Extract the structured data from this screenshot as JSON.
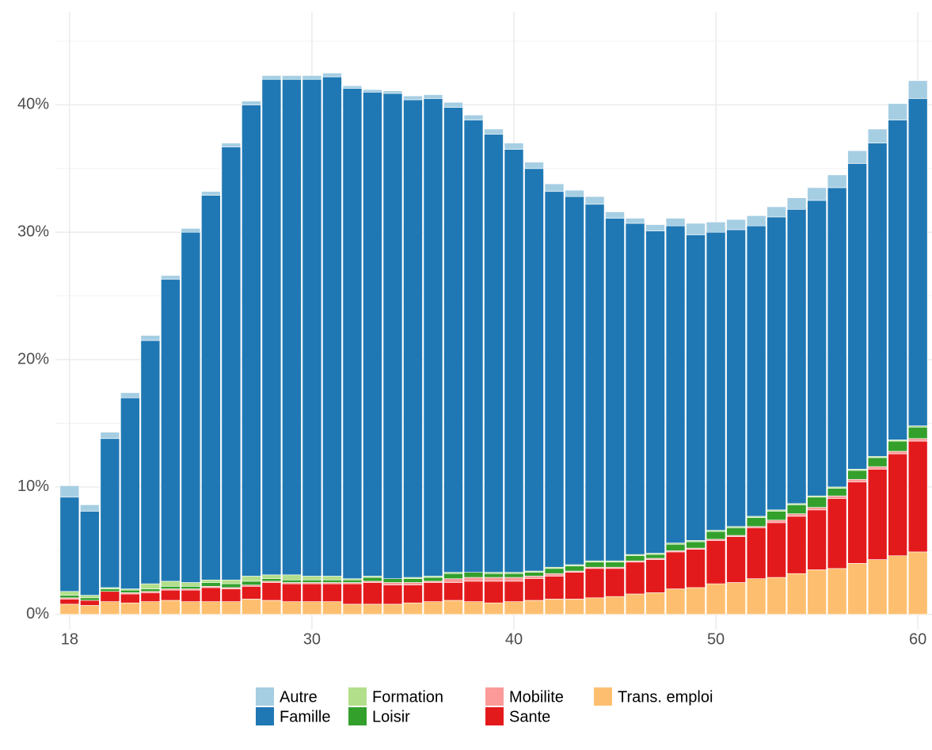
{
  "chart_data": {
    "type": "stacked_bar",
    "x": [
      18,
      19,
      20,
      21,
      22,
      23,
      24,
      25,
      26,
      27,
      28,
      29,
      30,
      31,
      32,
      33,
      34,
      35,
      36,
      37,
      38,
      39,
      40,
      41,
      42,
      43,
      44,
      45,
      46,
      47,
      48,
      49,
      50,
      51,
      52,
      53,
      54,
      55,
      56,
      57,
      58,
      59,
      60
    ],
    "series": [
      {
        "name": "Autre",
        "color": "#a6cee3",
        "values": [
          0.9,
          0.5,
          0.5,
          0.4,
          0.4,
          0.3,
          0.3,
          0.3,
          0.3,
          0.3,
          0.3,
          0.3,
          0.3,
          0.3,
          0.2,
          0.2,
          0.2,
          0.3,
          0.3,
          0.4,
          0.4,
          0.4,
          0.5,
          0.5,
          0.6,
          0.5,
          0.6,
          0.5,
          0.4,
          0.5,
          0.6,
          0.9,
          0.8,
          0.8,
          0.8,
          0.8,
          0.9,
          1.0,
          1.0,
          1.0,
          1.1,
          1.3,
          1.4
        ]
      },
      {
        "name": "Famille",
        "color": "#1f78b4",
        "values": [
          7.4,
          6.6,
          11.7,
          15.0,
          19.1,
          23.7,
          27.5,
          30.2,
          34.0,
          37.0,
          38.9,
          38.9,
          39.0,
          39.2,
          38.5,
          38.0,
          38.1,
          37.5,
          37.5,
          36.5,
          35.5,
          34.4,
          33.2,
          31.6,
          29.5,
          28.9,
          28.0,
          26.9,
          26.0,
          25.3,
          24.9,
          24.0,
          23.4,
          23.3,
          22.8,
          23.0,
          23.1,
          23.2,
          23.5,
          24.0,
          24.6,
          25.1,
          25.7
        ]
      },
      {
        "name": "Formation",
        "color": "#b2df8a",
        "values": [
          0.3,
          0.2,
          0.1,
          0.1,
          0.4,
          0.4,
          0.3,
          0.2,
          0.3,
          0.4,
          0.3,
          0.4,
          0.3,
          0.3,
          0.1,
          0.1,
          0.0,
          0.1,
          0.1,
          0.1,
          0.0,
          0.1,
          0.1,
          0.1,
          0.1,
          0.1,
          0.1,
          0.1,
          0.1,
          0.1,
          0.1,
          0.1,
          0.1,
          0.1,
          0.1,
          0.1,
          0.1,
          0.1,
          0.1,
          0.1,
          0.1,
          0.1,
          0.1
        ]
      },
      {
        "name": "Loisir",
        "color": "#33a02c",
        "values": [
          0.2,
          0.2,
          0.2,
          0.2,
          0.2,
          0.2,
          0.2,
          0.3,
          0.3,
          0.3,
          0.2,
          0.2,
          0.2,
          0.2,
          0.2,
          0.3,
          0.3,
          0.3,
          0.3,
          0.4,
          0.4,
          0.3,
          0.3,
          0.3,
          0.4,
          0.4,
          0.4,
          0.4,
          0.4,
          0.3,
          0.5,
          0.5,
          0.6,
          0.6,
          0.7,
          0.7,
          0.7,
          0.8,
          0.6,
          0.7,
          0.7,
          0.8,
          0.9
        ]
      },
      {
        "name": "Mobilite",
        "color": "#fb9a99",
        "values": [
          0.1,
          0.0,
          0.0,
          0.1,
          0.1,
          0.1,
          0.1,
          0.1,
          0.1,
          0.1,
          0.1,
          0.1,
          0.1,
          0.1,
          0.1,
          0.1,
          0.2,
          0.2,
          0.1,
          0.3,
          0.3,
          0.3,
          0.3,
          0.2,
          0.2,
          0.1,
          0.1,
          0.1,
          0.1,
          0.1,
          0.1,
          0.1,
          0.1,
          0.1,
          0.1,
          0.2,
          0.2,
          0.2,
          0.2,
          0.2,
          0.2,
          0.2,
          0.2
        ]
      },
      {
        "name": "Sante",
        "color": "#e31a1c",
        "values": [
          0.4,
          0.4,
          0.8,
          0.7,
          0.7,
          0.8,
          0.9,
          1.1,
          1.0,
          1.0,
          1.4,
          1.4,
          1.4,
          1.4,
          1.6,
          1.7,
          1.5,
          1.4,
          1.5,
          1.4,
          1.6,
          1.7,
          1.6,
          1.7,
          1.8,
          2.1,
          2.3,
          2.2,
          2.5,
          2.6,
          2.9,
          3.0,
          3.4,
          3.6,
          4.0,
          4.3,
          4.5,
          4.7,
          5.5,
          6.4,
          7.1,
          8.0,
          8.7
        ]
      },
      {
        "name": "Trans. emploi",
        "color": "#fdbf6f",
        "values": [
          0.8,
          0.7,
          1.0,
          0.9,
          1.0,
          1.1,
          1.0,
          1.0,
          1.0,
          1.2,
          1.1,
          1.0,
          1.0,
          1.0,
          0.8,
          0.8,
          0.8,
          0.9,
          1.0,
          1.1,
          1.0,
          0.9,
          1.0,
          1.1,
          1.2,
          1.2,
          1.3,
          1.4,
          1.6,
          1.7,
          2.0,
          2.1,
          2.4,
          2.5,
          2.8,
          2.9,
          3.2,
          3.5,
          3.6,
          4.0,
          4.3,
          4.6,
          4.9
        ]
      }
    ],
    "xlim": [
      17.3,
      60.7
    ],
    "xticks": [
      18,
      30,
      40,
      50,
      60
    ],
    "ylim": [
      -1.2,
      47.3
    ],
    "yticks": [
      {
        "value": 0,
        "label": "0%"
      },
      {
        "value": 10,
        "label": "10%"
      },
      {
        "value": 20,
        "label": "20%"
      },
      {
        "value": 30,
        "label": "30%"
      },
      {
        "value": 40,
        "label": "40%"
      }
    ],
    "y_minor_ticks": [
      5,
      15,
      25,
      35,
      45
    ],
    "grid": true,
    "legend": "bottom"
  }
}
